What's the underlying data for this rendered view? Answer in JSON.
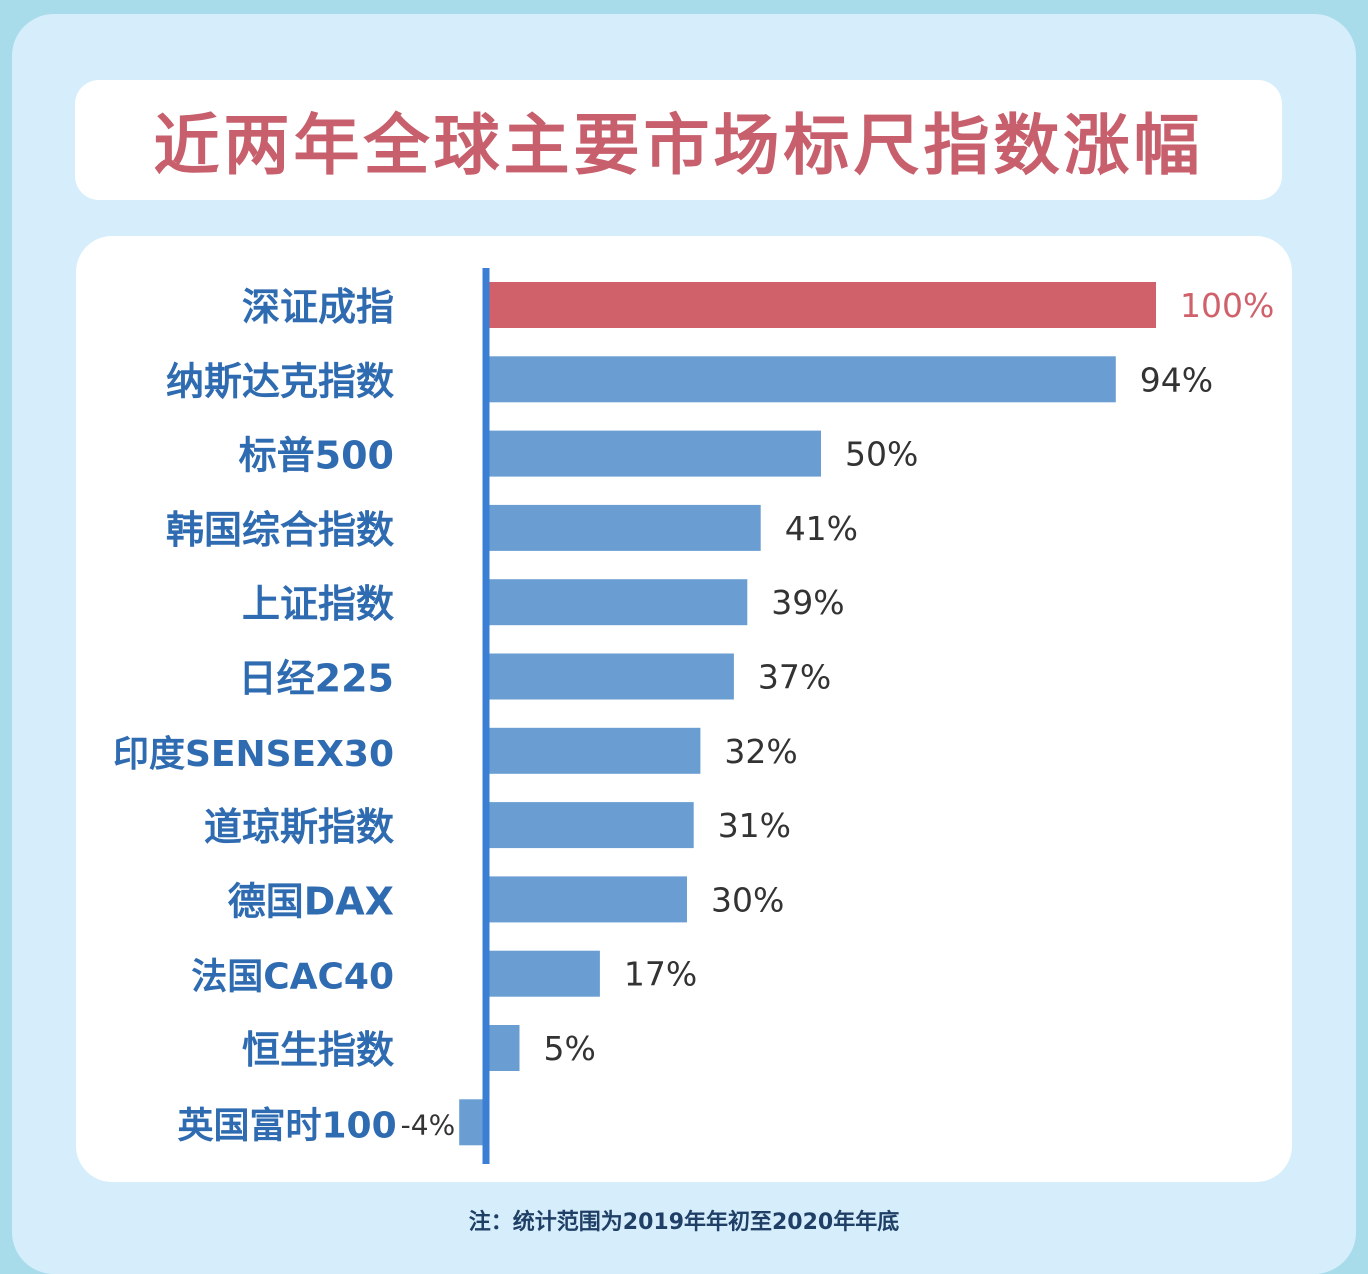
{
  "title": "近两年全球主要市场标尺指数涨幅",
  "note": "注：统计范围为2019年年初至2020年年底",
  "colors": {
    "highlight": "#d0616b",
    "bar": "#6a9ed2",
    "axis": "#3b7fd4",
    "category_label": "#2f6bb0",
    "value_label": "#333333"
  },
  "chart_data": {
    "type": "bar",
    "orientation": "horizontal",
    "title": "近两年全球主要市场标尺指数涨幅",
    "categories": [
      "深证成指",
      "纳斯达克指数",
      "标普500",
      "韩国综合指数",
      "上证指数",
      "日经225",
      "印度SENSEX30",
      "道琼斯指数",
      "德国DAX",
      "法国CAC40",
      "恒生指数",
      "英国富时100"
    ],
    "values": [
      100,
      94,
      50,
      41,
      39,
      37,
      32,
      31,
      30,
      17,
      5,
      -4
    ],
    "value_labels": [
      "100%",
      "94%",
      "50%",
      "41%",
      "39%",
      "37%",
      "32%",
      "31%",
      "30%",
      "17%",
      "5%",
      "-4%"
    ],
    "highlight_index": 0,
    "unit": "%",
    "xlim": [
      -4,
      100
    ],
    "grid": false,
    "legend": "none"
  }
}
